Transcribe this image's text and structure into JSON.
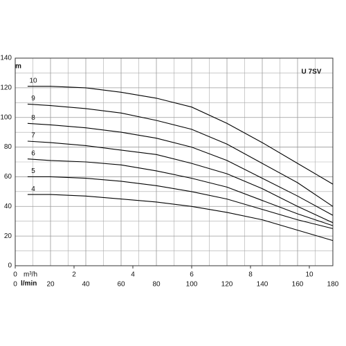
{
  "chart_data": {
    "type": "line",
    "title": "U 7SV",
    "y_label": "m",
    "x_label": "l/min",
    "x2_label": "m³/h",
    "x": [
      7,
      20,
      40,
      60,
      80,
      100,
      120,
      140,
      160,
      180
    ],
    "series": [
      {
        "name": "10",
        "color": "#000000",
        "values": [
          121,
          121,
          120,
          117,
          113,
          107,
          96,
          83,
          69,
          55
        ]
      },
      {
        "name": "9",
        "color": "#000000",
        "values": [
          109,
          108,
          106,
          103,
          98,
          92,
          82,
          69,
          56,
          40
        ]
      },
      {
        "name": "8",
        "color": "#000000",
        "values": [
          96,
          95,
          93,
          90,
          86,
          80,
          71,
          59,
          47,
          34
        ]
      },
      {
        "name": "7",
        "color": "#000000",
        "values": [
          84,
          83,
          81,
          78,
          75,
          69,
          62,
          52,
          40,
          29
        ]
      },
      {
        "name": "6",
        "color": "#000000",
        "values": [
          72,
          71,
          70,
          68,
          64,
          59,
          53,
          44,
          35,
          27
        ]
      },
      {
        "name": "5",
        "color": "#000000",
        "values": [
          60,
          60,
          59,
          57,
          54,
          50,
          45,
          38,
          31,
          25
        ]
      },
      {
        "name": "4",
        "color": "#000000",
        "values": [
          48,
          48,
          47,
          45,
          43,
          40,
          36,
          31,
          24,
          17
        ]
      }
    ],
    "xlim": [
      0,
      180
    ],
    "xticks": [
      0,
      20,
      40,
      60,
      80,
      100,
      120,
      140,
      160,
      180
    ],
    "x2lim": [
      0,
      10.8
    ],
    "x2ticks": [
      0,
      2,
      4,
      6,
      8,
      10
    ],
    "ylim": [
      0,
      140
    ],
    "yticks": [
      0,
      20,
      40,
      60,
      80,
      100,
      120,
      140
    ],
    "grid": true,
    "title_color": "#2a6fc0"
  }
}
